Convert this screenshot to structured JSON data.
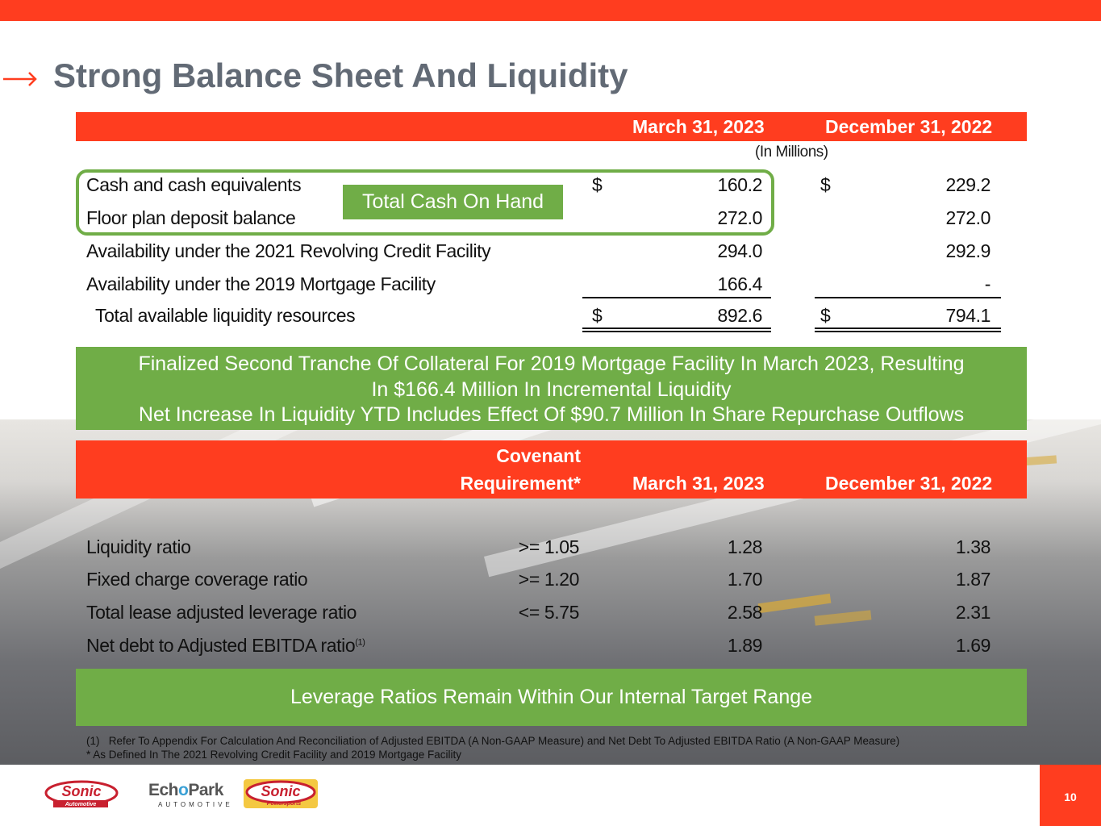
{
  "slide": {
    "title": "Strong Balance Sheet And Liquidity",
    "page_number": "10"
  },
  "liquidity_table": {
    "columns": [
      "March 31, 2023",
      "December 31, 2022"
    ],
    "unit_note": "(In Millions)",
    "rows": [
      {
        "label": "Cash and cash equivalents",
        "dollar1": "$",
        "v1": "160.2",
        "dollar2": "$",
        "v2": "229.2"
      },
      {
        "label": "Floor plan deposit balance",
        "v1": "272.0",
        "v2": "272.0"
      },
      {
        "label": "Availability under the 2021 Revolving Credit Facility",
        "v1": "294.0",
        "v2": "292.9"
      },
      {
        "label": "Availability under the 2019 Mortgage Facility",
        "v1": "166.4",
        "v2": "-"
      },
      {
        "label": "Total available liquidity resources",
        "dollar1": "$",
        "v1": "892.6",
        "dollar2": "$",
        "v2": "794.1"
      }
    ],
    "highlight_label": "Total Cash On Hand"
  },
  "banner1": {
    "line1": "Finalized Second Tranche Of Collateral For 2019 Mortgage Facility In March 2023, Resulting",
    "line2": "In $166.4 Million In Incremental Liquidity",
    "line3": "Net Increase In Liquidity YTD Includes Effect Of $90.7 Million In Share Repurchase Outflows"
  },
  "covenant_table": {
    "cov_header_line1": "Covenant",
    "cov_header_line2": "Requirement*",
    "columns": [
      "March 31, 2023",
      "December 31, 2022"
    ],
    "rows": [
      {
        "label": "Liquidity ratio",
        "req": ">= 1.05",
        "v1": "1.28",
        "v2": "1.38"
      },
      {
        "label": "Fixed charge coverage ratio",
        "req": ">= 1.20",
        "v1": "1.70",
        "v2": "1.87"
      },
      {
        "label": "Total lease adjusted leverage ratio",
        "req": "<= 5.75",
        "v1": "2.58",
        "v2": "2.31"
      },
      {
        "label": "Net debt to Adjusted EBITDA ratio",
        "sup": "(1)",
        "req": "",
        "v1": "1.89",
        "v2": "1.69"
      }
    ]
  },
  "banner2": {
    "text": "Leverage Ratios Remain Within Our Internal Target Range"
  },
  "footnotes": {
    "note1_marker": "(1)",
    "note1": "Refer To Appendix For Calculation And Reconciliation of Adjusted EBITDA (A Non-GAAP Measure) and Net Debt To Adjusted EBITDA Ratio (A Non-GAAP Measure)",
    "note2": "* As Defined In The 2021 Revolving Credit Facility and 2019 Mortgage Facility"
  },
  "logos": {
    "sonic_main": "Sonic",
    "sonic_sub": "Automotive",
    "echo_part1": "Ech",
    "echo_o": "o",
    "echo_part2": "Park",
    "echo_sub": "AUTOMOTIVE",
    "power_main": "Sonic",
    "power_sub": "Powersports"
  },
  "colors": {
    "accent_red": "#ff3d1f",
    "accent_green": "#70ad47",
    "title_gray": "#626a75"
  }
}
